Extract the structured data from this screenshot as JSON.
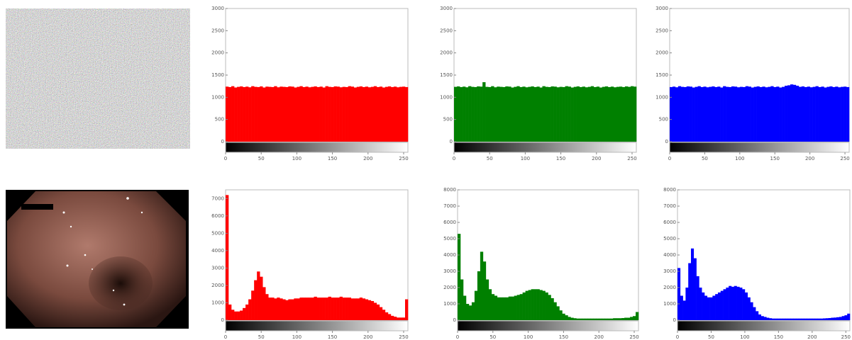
{
  "chart_data": [
    {
      "type": "histogram",
      "color": "#ff0000",
      "xlim": [
        0,
        256
      ],
      "xticks": [
        0,
        50,
        100,
        150,
        200,
        250
      ],
      "ylim": [
        0,
        3000
      ],
      "yticks": [
        0,
        500,
        1000,
        1500,
        2000,
        2500,
        3000
      ],
      "bins": [
        0,
        4,
        8,
        12,
        16,
        20,
        24,
        28,
        32,
        36,
        40,
        44,
        48,
        52,
        56,
        60,
        64,
        68,
        72,
        76,
        80,
        84,
        88,
        92,
        96,
        100,
        104,
        108,
        112,
        116,
        120,
        124,
        128,
        132,
        136,
        140,
        144,
        148,
        152,
        156,
        160,
        164,
        168,
        172,
        176,
        180,
        184,
        188,
        192,
        196,
        200,
        204,
        208,
        212,
        216,
        220,
        224,
        228,
        232,
        236,
        240,
        244,
        248,
        252,
        256
      ],
      "values": [
        1240,
        1230,
        1250,
        1220,
        1235,
        1245,
        1230,
        1240,
        1225,
        1250,
        1235,
        1230,
        1245,
        1220,
        1240,
        1235,
        1230,
        1250,
        1225,
        1240,
        1235,
        1230,
        1245,
        1240,
        1220,
        1235,
        1250,
        1230,
        1240,
        1225,
        1235,
        1245,
        1230,
        1240,
        1220,
        1250,
        1235,
        1230,
        1245,
        1240,
        1225,
        1235,
        1230,
        1250,
        1240,
        1220,
        1235,
        1245,
        1230,
        1240,
        1225,
        1235,
        1250,
        1230,
        1240,
        1220,
        1235,
        1245,
        1230,
        1240,
        1225,
        1235,
        1240,
        1230
      ]
    },
    {
      "type": "histogram",
      "color": "#008000",
      "xlim": [
        0,
        256
      ],
      "xticks": [
        0,
        50,
        100,
        150,
        200,
        250
      ],
      "ylim": [
        0,
        3000
      ],
      "yticks": [
        0,
        500,
        1000,
        1500,
        2000,
        2500,
        3000
      ],
      "bins": [
        0,
        4,
        8,
        12,
        16,
        20,
        24,
        28,
        32,
        36,
        40,
        44,
        48,
        52,
        56,
        60,
        64,
        68,
        72,
        76,
        80,
        84,
        88,
        92,
        96,
        100,
        104,
        108,
        112,
        116,
        120,
        124,
        128,
        132,
        136,
        140,
        144,
        148,
        152,
        156,
        160,
        164,
        168,
        172,
        176,
        180,
        184,
        188,
        192,
        196,
        200,
        204,
        208,
        212,
        216,
        220,
        224,
        228,
        232,
        236,
        240,
        244,
        248,
        252,
        256
      ],
      "values": [
        1235,
        1245,
        1230,
        1240,
        1225,
        1250,
        1235,
        1230,
        1245,
        1240,
        1340,
        1235,
        1230,
        1250,
        1225,
        1240,
        1235,
        1230,
        1245,
        1240,
        1220,
        1235,
        1250,
        1230,
        1240,
        1225,
        1235,
        1245,
        1230,
        1240,
        1220,
        1250,
        1235,
        1230,
        1245,
        1240,
        1225,
        1235,
        1230,
        1250,
        1240,
        1220,
        1235,
        1245,
        1230,
        1240,
        1225,
        1235,
        1250,
        1230,
        1240,
        1220,
        1235,
        1245,
        1230,
        1240,
        1225,
        1235,
        1240,
        1230,
        1245,
        1235,
        1250,
        1240
      ]
    },
    {
      "type": "histogram",
      "color": "#0000ff",
      "xlim": [
        0,
        256
      ],
      "xticks": [
        0,
        50,
        100,
        150,
        200,
        250
      ],
      "ylim": [
        0,
        3000
      ],
      "yticks": [
        0,
        500,
        1000,
        1500,
        2000,
        2500,
        3000
      ],
      "bins": [
        0,
        4,
        8,
        12,
        16,
        20,
        24,
        28,
        32,
        36,
        40,
        44,
        48,
        52,
        56,
        60,
        64,
        68,
        72,
        76,
        80,
        84,
        88,
        92,
        96,
        100,
        104,
        108,
        112,
        116,
        120,
        124,
        128,
        132,
        136,
        140,
        144,
        148,
        152,
        156,
        160,
        164,
        168,
        172,
        176,
        180,
        184,
        188,
        192,
        196,
        200,
        204,
        208,
        212,
        216,
        220,
        224,
        228,
        232,
        236,
        240,
        244,
        248,
        252,
        256
      ],
      "values": [
        1230,
        1240,
        1225,
        1250,
        1235,
        1230,
        1245,
        1240,
        1220,
        1235,
        1250,
        1230,
        1240,
        1225,
        1235,
        1245,
        1230,
        1240,
        1220,
        1250,
        1235,
        1230,
        1245,
        1240,
        1225,
        1235,
        1230,
        1250,
        1240,
        1220,
        1235,
        1245,
        1230,
        1240,
        1225,
        1235,
        1250,
        1230,
        1240,
        1220,
        1235,
        1260,
        1270,
        1290,
        1280,
        1260,
        1235,
        1245,
        1230,
        1240,
        1225,
        1235,
        1250,
        1230,
        1240,
        1220,
        1235,
        1245,
        1230,
        1240,
        1225,
        1235,
        1240,
        1230
      ]
    },
    {
      "type": "histogram",
      "color": "#ff0000",
      "xlim": [
        0,
        256
      ],
      "xticks": [
        0,
        50,
        100,
        150,
        200,
        250
      ],
      "ylim": [
        0,
        7500
      ],
      "yticks": [
        0,
        1000,
        2000,
        3000,
        4000,
        5000,
        6000,
        7000
      ],
      "bins": [
        0,
        4,
        8,
        12,
        16,
        20,
        24,
        28,
        32,
        36,
        40,
        44,
        48,
        52,
        56,
        60,
        64,
        68,
        72,
        76,
        80,
        84,
        88,
        92,
        96,
        100,
        104,
        108,
        112,
        116,
        120,
        124,
        128,
        132,
        136,
        140,
        144,
        148,
        152,
        156,
        160,
        164,
        168,
        172,
        176,
        180,
        184,
        188,
        192,
        196,
        200,
        204,
        208,
        212,
        216,
        220,
        224,
        228,
        232,
        236,
        240,
        244,
        248,
        252,
        256
      ],
      "values": [
        7200,
        900,
        600,
        500,
        500,
        550,
        700,
        900,
        1200,
        1700,
        2300,
        2800,
        2500,
        1900,
        1500,
        1300,
        1300,
        1250,
        1300,
        1250,
        1200,
        1150,
        1200,
        1200,
        1250,
        1250,
        1300,
        1300,
        1300,
        1300,
        1300,
        1350,
        1300,
        1300,
        1300,
        1300,
        1350,
        1300,
        1300,
        1300,
        1350,
        1300,
        1300,
        1300,
        1250,
        1250,
        1250,
        1300,
        1250,
        1200,
        1150,
        1100,
        1000,
        900,
        750,
        600,
        450,
        350,
        250,
        200,
        150,
        150,
        150,
        1200
      ]
    },
    {
      "type": "histogram",
      "color": "#008000",
      "xlim": [
        0,
        256
      ],
      "xticks": [
        0,
        50,
        100,
        150,
        200,
        250
      ],
      "ylim": [
        0,
        8000
      ],
      "yticks": [
        0,
        1000,
        2000,
        3000,
        4000,
        5000,
        6000,
        7000,
        8000
      ],
      "bins": [
        0,
        4,
        8,
        12,
        16,
        20,
        24,
        28,
        32,
        36,
        40,
        44,
        48,
        52,
        56,
        60,
        64,
        68,
        72,
        76,
        80,
        84,
        88,
        92,
        96,
        100,
        104,
        108,
        112,
        116,
        120,
        124,
        128,
        132,
        136,
        140,
        144,
        148,
        152,
        156,
        160,
        164,
        168,
        172,
        176,
        180,
        184,
        188,
        192,
        196,
        200,
        204,
        208,
        212,
        216,
        220,
        224,
        228,
        232,
        236,
        240,
        244,
        248,
        252,
        256
      ],
      "values": [
        5300,
        2500,
        1500,
        1000,
        900,
        1100,
        1800,
        3000,
        4200,
        3600,
        2500,
        1900,
        1600,
        1500,
        1400,
        1400,
        1400,
        1400,
        1450,
        1450,
        1500,
        1550,
        1600,
        1700,
        1800,
        1850,
        1900,
        1900,
        1900,
        1850,
        1800,
        1700,
        1550,
        1350,
        1100,
        850,
        600,
        400,
        300,
        200,
        150,
        120,
        100,
        100,
        100,
        100,
        100,
        100,
        100,
        100,
        100,
        100,
        100,
        100,
        100,
        120,
        120,
        120,
        130,
        150,
        150,
        200,
        250,
        500
      ]
    },
    {
      "type": "histogram",
      "color": "#0000ff",
      "xlim": [
        0,
        256
      ],
      "xticks": [
        0,
        50,
        100,
        150,
        200,
        250
      ],
      "ylim": [
        0,
        8000
      ],
      "yticks": [
        0,
        1000,
        2000,
        3000,
        4000,
        5000,
        6000,
        7000,
        8000
      ],
      "bins": [
        0,
        4,
        8,
        12,
        16,
        20,
        24,
        28,
        32,
        36,
        40,
        44,
        48,
        52,
        56,
        60,
        64,
        68,
        72,
        76,
        80,
        84,
        88,
        92,
        96,
        100,
        104,
        108,
        112,
        116,
        120,
        124,
        128,
        132,
        136,
        140,
        144,
        148,
        152,
        156,
        160,
        164,
        168,
        172,
        176,
        180,
        184,
        188,
        192,
        196,
        200,
        204,
        208,
        212,
        216,
        220,
        224,
        228,
        232,
        236,
        240,
        244,
        248,
        252,
        256
      ],
      "values": [
        3200,
        1500,
        1200,
        2000,
        3500,
        4400,
        3800,
        2700,
        2000,
        1700,
        1500,
        1400,
        1400,
        1500,
        1600,
        1700,
        1800,
        1900,
        2000,
        2100,
        2050,
        2100,
        2050,
        2000,
        1900,
        1700,
        1400,
        1100,
        800,
        550,
        350,
        250,
        200,
        150,
        120,
        100,
        100,
        100,
        100,
        100,
        100,
        100,
        100,
        100,
        100,
        100,
        100,
        100,
        100,
        100,
        100,
        100,
        100,
        100,
        110,
        120,
        130,
        150,
        160,
        180,
        200,
        250,
        300,
        400
      ]
    }
  ]
}
